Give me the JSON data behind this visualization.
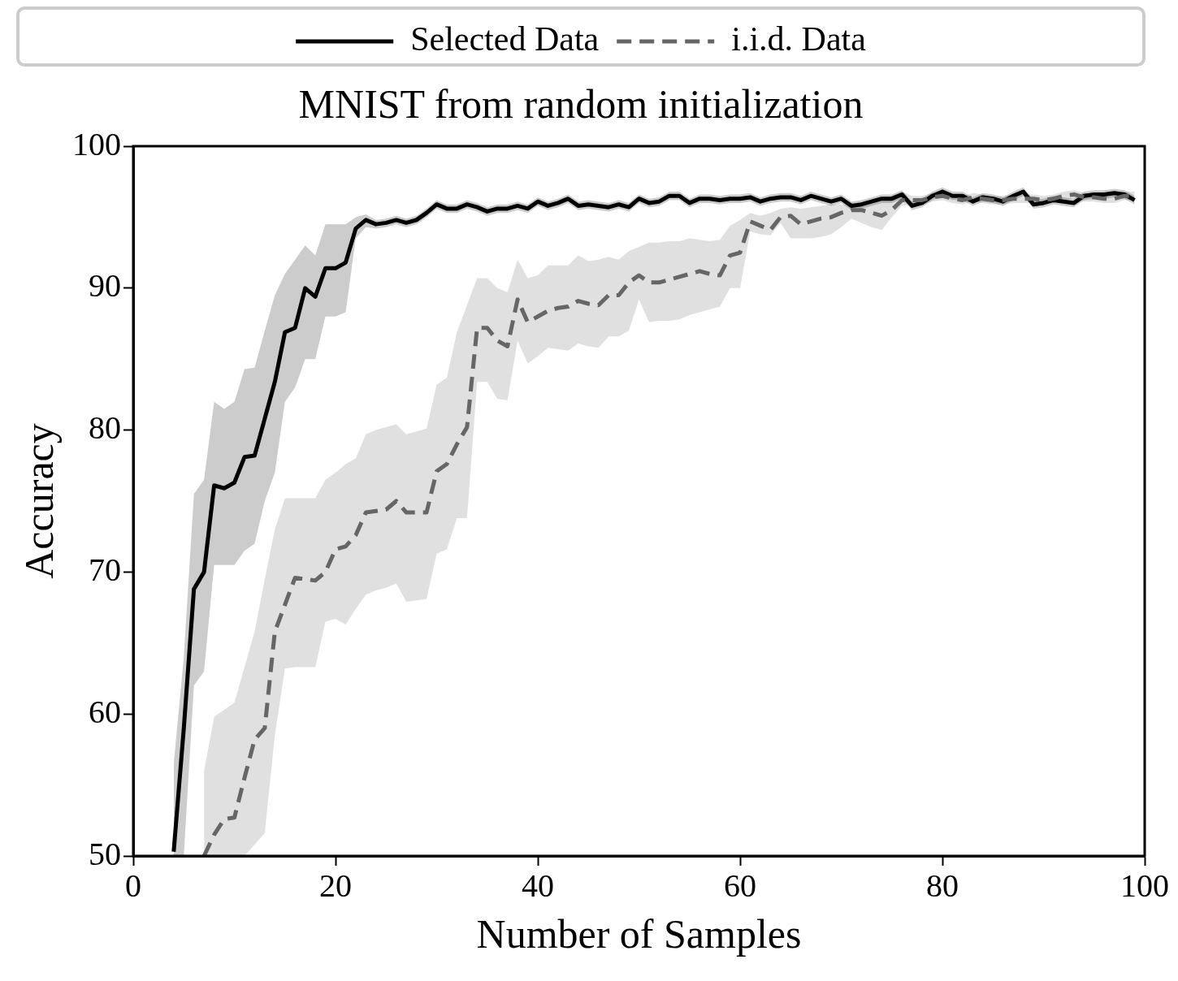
{
  "chart_data": {
    "type": "line",
    "title": "MNIST from random initialization",
    "xlabel": "Number of Samples",
    "ylabel": "Accuracy",
    "xlim": [
      0,
      100
    ],
    "xticks": [
      0,
      20,
      40,
      60,
      80,
      100
    ],
    "ylim": [
      50,
      100
    ],
    "yticks": [
      50,
      60,
      70,
      80,
      90,
      100
    ],
    "grid": false,
    "legend": "top",
    "marker": "none",
    "series": [
      {
        "name": "Selected Data",
        "color": "#000000",
        "line_style": "solid",
        "x": [
          4,
          5,
          6,
          7,
          8,
          9,
          10,
          11,
          12,
          13,
          14,
          15,
          16,
          17,
          18,
          19,
          20,
          21,
          22,
          23,
          24,
          25,
          26,
          27,
          28,
          29,
          30,
          31,
          32,
          33,
          34,
          35,
          36,
          37,
          38,
          39,
          40,
          41,
          42,
          43,
          44,
          45,
          46,
          47,
          48,
          49,
          50,
          51,
          52,
          53,
          54,
          55,
          56,
          57,
          58,
          59,
          60,
          61,
          62,
          63,
          64,
          65,
          66,
          67,
          68,
          69,
          70,
          71,
          72,
          73,
          74,
          75,
          76,
          77,
          78,
          79,
          80,
          81,
          82,
          83,
          84,
          85,
          86,
          87,
          88,
          89,
          90,
          91,
          92,
          93,
          94,
          95,
          96,
          97,
          98,
          99
        ],
        "values": [
          50.3,
          59,
          68.8,
          70,
          76.1,
          75.9,
          76.3,
          78.1,
          78.2,
          80.8,
          83.4,
          86.9,
          87.2,
          90,
          89.4,
          91.4,
          91.4,
          91.8,
          94.2,
          94.8,
          94.5,
          94.6,
          94.8,
          94.6,
          94.8,
          95.3,
          95.9,
          95.6,
          95.6,
          95.9,
          95.7,
          95.4,
          95.6,
          95.6,
          95.8,
          95.6,
          96.1,
          95.8,
          96,
          96.3,
          95.8,
          95.9,
          95.8,
          95.7,
          95.9,
          95.7,
          96.3,
          96,
          96.1,
          96.5,
          96.5,
          96,
          96.3,
          96.3,
          96.2,
          96.3,
          96.3,
          96.4,
          96.1,
          96.3,
          96.4,
          96.4,
          96.2,
          96.5,
          96.3,
          96.1,
          96.3,
          95.8,
          95.9,
          96.1,
          96.3,
          96.3,
          96.6,
          95.8,
          96,
          96.5,
          96.8,
          96.5,
          96.5,
          96.1,
          96.4,
          96.3,
          96.1,
          96.5,
          96.8,
          95.9,
          96,
          96.2,
          96.1,
          96,
          96.5,
          96.6,
          96.6,
          96.7,
          96.6,
          96.2
        ],
        "lower": [
          50,
          50,
          62,
          63,
          70.5,
          70.5,
          70.5,
          71.5,
          72,
          75,
          77,
          82,
          83,
          85,
          85,
          88,
          88,
          88.3,
          93.5,
          94.3,
          94.2,
          94.3,
          94.5,
          94.3,
          94.5,
          95,
          95.6,
          95.3,
          95.3,
          95.6,
          95.4,
          95.1,
          95.3,
          95.3,
          95.5,
          95.3,
          95.8,
          95.5,
          95.7,
          96,
          95.5,
          95.6,
          95.5,
          95.4,
          95.6,
          95.4,
          96,
          95.7,
          95.8,
          96.2,
          96.2,
          95.7,
          96,
          96,
          95.9,
          96,
          96,
          96.1,
          95.8,
          96,
          96.1,
          96.1,
          95.9,
          96.2,
          96,
          95.8,
          96,
          95.5,
          95.6,
          95.8,
          96,
          96,
          96.3,
          95.5,
          95.7,
          96.2,
          96.5,
          96.2,
          96.2,
          95.8,
          96.1,
          96,
          95.8,
          96.2,
          96.5,
          95.6,
          95.7,
          95.9,
          95.8,
          95.7,
          96.2,
          96.3,
          96.3,
          96.4,
          96.3,
          95.9
        ],
        "upper": [
          56.5,
          64,
          75.5,
          76.5,
          82,
          81.5,
          82,
          84.3,
          84.4,
          87,
          89.5,
          91,
          92,
          93,
          92.3,
          94.5,
          94.5,
          94.5,
          95,
          95.2,
          94.8,
          94.9,
          95.1,
          94.9,
          95.1,
          95.6,
          96.2,
          95.9,
          95.9,
          96.2,
          96,
          95.7,
          95.9,
          95.9,
          96.1,
          95.9,
          96.4,
          96.1,
          96.3,
          96.6,
          96.1,
          96.2,
          96.1,
          96,
          96.2,
          96,
          96.6,
          96.3,
          96.4,
          96.8,
          96.8,
          96.3,
          96.6,
          96.6,
          96.5,
          96.6,
          96.6,
          96.7,
          96.4,
          96.6,
          96.7,
          96.7,
          96.5,
          96.8,
          96.6,
          96.4,
          96.6,
          96.1,
          96.2,
          96.4,
          96.6,
          96.6,
          96.9,
          96.1,
          96.3,
          96.8,
          97.1,
          96.8,
          96.8,
          96.4,
          96.7,
          96.6,
          96.4,
          96.8,
          97.1,
          96.2,
          96.3,
          96.5,
          96.4,
          96.3,
          96.8,
          96.9,
          96.9,
          97,
          96.9,
          96.5
        ]
      },
      {
        "name": "i.i.d. Data",
        "color": "#666666",
        "line_style": "dashed",
        "x": [
          7,
          8,
          9,
          10,
          11,
          12,
          13,
          14,
          15,
          16,
          17,
          18,
          19,
          20,
          21,
          22,
          23,
          24,
          25,
          26,
          27,
          28,
          29,
          30,
          31,
          32,
          33,
          34,
          35,
          36,
          37,
          38,
          39,
          40,
          41,
          42,
          43,
          44,
          45,
          46,
          47,
          48,
          49,
          50,
          51,
          52,
          53,
          54,
          55,
          56,
          57,
          58,
          59,
          60,
          61,
          62,
          63,
          64,
          65,
          66,
          67,
          68,
          69,
          70,
          71,
          72,
          73,
          74,
          75,
          76,
          77,
          78,
          79,
          80,
          81,
          82,
          83,
          84,
          85,
          86,
          87,
          88,
          89,
          90,
          91,
          92,
          93,
          94,
          95,
          96,
          97,
          98,
          99
        ],
        "values": [
          50,
          51.5,
          52.6,
          52.7,
          55.5,
          58.2,
          59,
          65.8,
          67.7,
          69.6,
          69.5,
          69.4,
          70,
          71.6,
          71.8,
          72.6,
          74.2,
          74.3,
          74.4,
          75,
          74.2,
          74.2,
          74.2,
          77.1,
          77.6,
          79,
          80.2,
          87.2,
          87.2,
          86.3,
          85.9,
          89.2,
          87.6,
          88,
          88.4,
          88.6,
          88.7,
          89.1,
          88.9,
          88.8,
          89.5,
          89.5,
          90.4,
          90.9,
          90.4,
          90.4,
          90.6,
          90.8,
          91,
          91.2,
          91,
          90.9,
          92.3,
          92.5,
          94.7,
          94.4,
          94.1,
          95,
          95.1,
          94.5,
          94.7,
          94.9,
          95,
          95.3,
          95.5,
          95.5,
          95.3,
          95.1,
          95.5,
          96.2,
          96.2,
          96.2,
          96.4,
          96.5,
          96.3,
          96.2,
          96.4,
          96.3,
          96.2,
          96.2,
          96.3,
          96.3,
          96.3,
          96.2,
          96.3,
          96.5,
          96.6,
          96.4,
          96.4,
          96.3,
          96.3,
          96.5,
          96.5
        ],
        "lower": [
          50,
          50,
          50,
          50,
          50,
          50.8,
          51.6,
          58.5,
          63.2,
          63.3,
          63.3,
          63.3,
          66.5,
          66.7,
          66.3,
          67.4,
          68.4,
          68.7,
          68.9,
          69.2,
          67.9,
          68,
          68.1,
          71.3,
          71.6,
          73.8,
          73.8,
          83.4,
          83.4,
          82.2,
          82.1,
          86.3,
          84.7,
          85.2,
          85.8,
          85.7,
          85.6,
          86.1,
          85.9,
          85.8,
          86.6,
          86.6,
          87,
          89.2,
          87.6,
          87.7,
          87.7,
          87.8,
          88.1,
          88.3,
          88.5,
          88.7,
          90,
          90,
          94,
          93.8,
          93.7,
          94.6,
          93.5,
          93.5,
          93.5,
          93.6,
          93.8,
          94.3,
          94.9,
          94.6,
          94.3,
          94.1,
          95,
          95.8,
          95.9,
          95.9,
          96.1,
          96.2,
          96,
          95.9,
          96.1,
          96,
          95.9,
          95.9,
          96,
          96,
          96,
          95.9,
          96,
          96.2,
          96.3,
          96.1,
          96.1,
          96,
          96,
          96.2,
          96.2
        ],
        "upper": [
          56,
          59.8,
          60.3,
          60.8,
          63.3,
          65.8,
          69.5,
          73,
          75.2,
          75.2,
          75.2,
          75.2,
          76.5,
          77,
          77.6,
          78,
          79.7,
          80,
          80.2,
          80.4,
          79.7,
          79.9,
          80.1,
          83.2,
          83.7,
          86.9,
          88.8,
          90.7,
          90.7,
          90,
          89.7,
          92,
          90.7,
          90.9,
          91.6,
          91.6,
          91.6,
          92.3,
          91.9,
          92,
          92.2,
          92,
          92.6,
          92.9,
          93.2,
          93.2,
          93.3,
          93.3,
          93.5,
          93.4,
          93.3,
          93.4,
          94.4,
          94.8,
          95.3,
          95.1,
          95.3,
          95.6,
          95.7,
          95.6,
          95.7,
          95.8,
          95.9,
          95.9,
          95.9,
          96,
          96.1,
          96.2,
          96.5,
          96.8,
          96.5,
          96.5,
          96.7,
          96.8,
          96.6,
          96.5,
          96.7,
          96.6,
          96.5,
          96.5,
          96.6,
          96.6,
          96.6,
          96.5,
          96.6,
          96.8,
          96.9,
          96.7,
          96.7,
          96.6,
          96.6,
          96.8,
          96.8
        ]
      }
    ]
  }
}
